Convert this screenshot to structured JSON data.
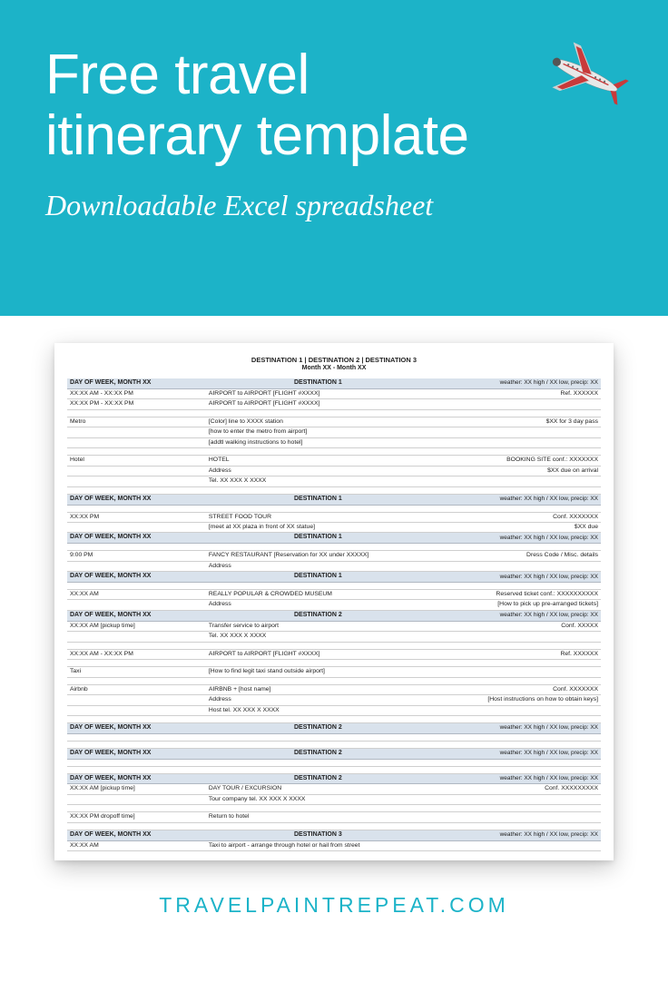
{
  "hero": {
    "title_line1": "Free travel",
    "title_line2": "itinerary template",
    "subtitle": "Downloadable Excel spreadsheet",
    "bg_color": "#1cb3c8"
  },
  "sheet": {
    "header": "DESTINATION 1  |  DESTINATION 2  |  DESTINATION 3",
    "subheader": "Month XX - Month XX",
    "section_bg": "#d9e2ec",
    "rows": [
      {
        "type": "section",
        "c1": "DAY OF WEEK,  MONTH XX",
        "c2": "DESTINATION 1",
        "c3": "weather: XX high / XX low, precip: XX"
      },
      {
        "type": "row",
        "c1": "XX:XX AM - XX:XX PM",
        "c2": "AIRPORT to AIRPORT [FLIGHT #XXXX]",
        "c3": "Ref. XXXXXX"
      },
      {
        "type": "row",
        "c1": "XX:XX PM - XX:XX PM",
        "c2": "AIRPORT to AIRPORT [FLIGHT #XXXX]",
        "c3": ""
      },
      {
        "type": "spacer"
      },
      {
        "type": "row",
        "c1": "Metro",
        "c2": "[Color] line to XXXX station",
        "c3": "$XX for 3 day pass"
      },
      {
        "type": "row",
        "c1": "",
        "c2": "[how to enter the metro from airport]",
        "c3": ""
      },
      {
        "type": "row",
        "c1": "",
        "c2": "[addtl walking instructions to hotel]",
        "c3": ""
      },
      {
        "type": "spacer"
      },
      {
        "type": "row",
        "c1": "Hotel",
        "c2": "HOTEL",
        "c3": "BOOKING SITE conf.: XXXXXXX"
      },
      {
        "type": "row",
        "c1": "",
        "c2": "Address",
        "c3": "$XX due on arrival"
      },
      {
        "type": "row",
        "c1": "",
        "c2": "Tel. XX XXX X XXXX",
        "c3": ""
      },
      {
        "type": "spacer"
      },
      {
        "type": "section",
        "c1": "DAY OF WEEK,  MONTH XX",
        "c2": "DESTINATION 1",
        "c3": "weather: XX high / XX low, precip: XX"
      },
      {
        "type": "spacer"
      },
      {
        "type": "row",
        "c1": "XX:XX PM",
        "c2": "STREET FOOD TOUR",
        "c3": "Conf. XXXXXXX"
      },
      {
        "type": "row",
        "c1": "",
        "c2": "[meet at XX plaza in front of XX statue]",
        "c3": "$XX due"
      },
      {
        "type": "section",
        "c1": "DAY OF WEEK,  MONTH XX",
        "c2": "DESTINATION 1",
        "c3": "weather: XX high / XX low, precip: XX"
      },
      {
        "type": "spacer"
      },
      {
        "type": "row",
        "c1": "9:00 PM",
        "c2": "FANCY RESTAURANT [Reservation for XX under XXXXX]",
        "c3": "Dress Code / Misc. details"
      },
      {
        "type": "row",
        "c1": "",
        "c2": "Address",
        "c3": ""
      },
      {
        "type": "section",
        "c1": "DAY OF WEEK,  MONTH XX",
        "c2": "DESTINATION 1",
        "c3": "weather: XX high / XX low, precip: XX"
      },
      {
        "type": "spacer"
      },
      {
        "type": "row",
        "c1": "XX:XX AM",
        "c2": "REALLY POPULAR & CROWDED MUSEUM",
        "c3": "Reserved ticket conf.: XXXXXXXXXX"
      },
      {
        "type": "row",
        "c1": "",
        "c2": "Address",
        "c3": "[How to pick up pre-arranged tickets]"
      },
      {
        "type": "section",
        "c1": "DAY OF WEEK,  MONTH XX",
        "c2": "DESTINATION 2",
        "c3": "weather: XX high / XX low, precip: XX"
      },
      {
        "type": "row",
        "c1": "XX:XX AM [pickup time]",
        "c2": "Transfer service to airport",
        "c3": "Conf. XXXXX"
      },
      {
        "type": "row",
        "c1": "",
        "c2": "Tel. XX XXX X XXXX",
        "c3": ""
      },
      {
        "type": "spacer"
      },
      {
        "type": "row",
        "c1": "XX:XX AM - XX:XX PM",
        "c2": "AIRPORT to AIRPORT [FLIGHT #XXXX]",
        "c3": "Ref. XXXXXX"
      },
      {
        "type": "spacer"
      },
      {
        "type": "row",
        "c1": "Taxi",
        "c2": "[How to find legit taxi stand outside airport]",
        "c3": ""
      },
      {
        "type": "spacer"
      },
      {
        "type": "row",
        "c1": "Airbnb",
        "c2": "AIRBNB + [host name]",
        "c3": "Conf. XXXXXXX"
      },
      {
        "type": "row",
        "c1": "",
        "c2": "Address",
        "c3": "[Host instructions on how to obtain keys]"
      },
      {
        "type": "row",
        "c1": "",
        "c2": "Host tel. XX XXX X XXXX",
        "c3": ""
      },
      {
        "type": "spacer"
      },
      {
        "type": "section",
        "c1": "DAY OF WEEK,  MONTH XX",
        "c2": "DESTINATION 2",
        "c3": "weather: XX high / XX low, precip: XX"
      },
      {
        "type": "spacer"
      },
      {
        "type": "spacer"
      },
      {
        "type": "section",
        "c1": "DAY OF WEEK,  MONTH XX",
        "c2": "DESTINATION 2",
        "c3": "weather: XX high / XX low, precip: XX"
      },
      {
        "type": "spacer"
      },
      {
        "type": "spacer"
      },
      {
        "type": "section",
        "c1": "DAY OF WEEK,  MONTH XX",
        "c2": "DESTINATION 2",
        "c3": "weather: XX high / XX low, precip: XX"
      },
      {
        "type": "row",
        "c1": "XX:XX AM [pickup time]",
        "c2": "DAY TOUR / EXCURSION",
        "c3": "Conf. XXXXXXXXX"
      },
      {
        "type": "row",
        "c1": "",
        "c2": "Tour company tel. XX XXX X XXXX",
        "c3": ""
      },
      {
        "type": "spacer"
      },
      {
        "type": "row",
        "c1": "XX:XX PM dropoff time]",
        "c2": "Return to hotel",
        "c3": ""
      },
      {
        "type": "spacer"
      },
      {
        "type": "section",
        "c1": "DAY OF WEEK,  MONTH XX",
        "c2": "DESTINATION 3",
        "c3": "weather: XX high / XX low, precip: XX"
      },
      {
        "type": "row",
        "c1": "XX:XX AM",
        "c2": "Taxi to airport - arrange through hotel or hail from street",
        "c3": ""
      }
    ]
  },
  "footer": {
    "text": "TRAVELPAINTREPEAT.COM",
    "color": "#1cb3c8"
  }
}
